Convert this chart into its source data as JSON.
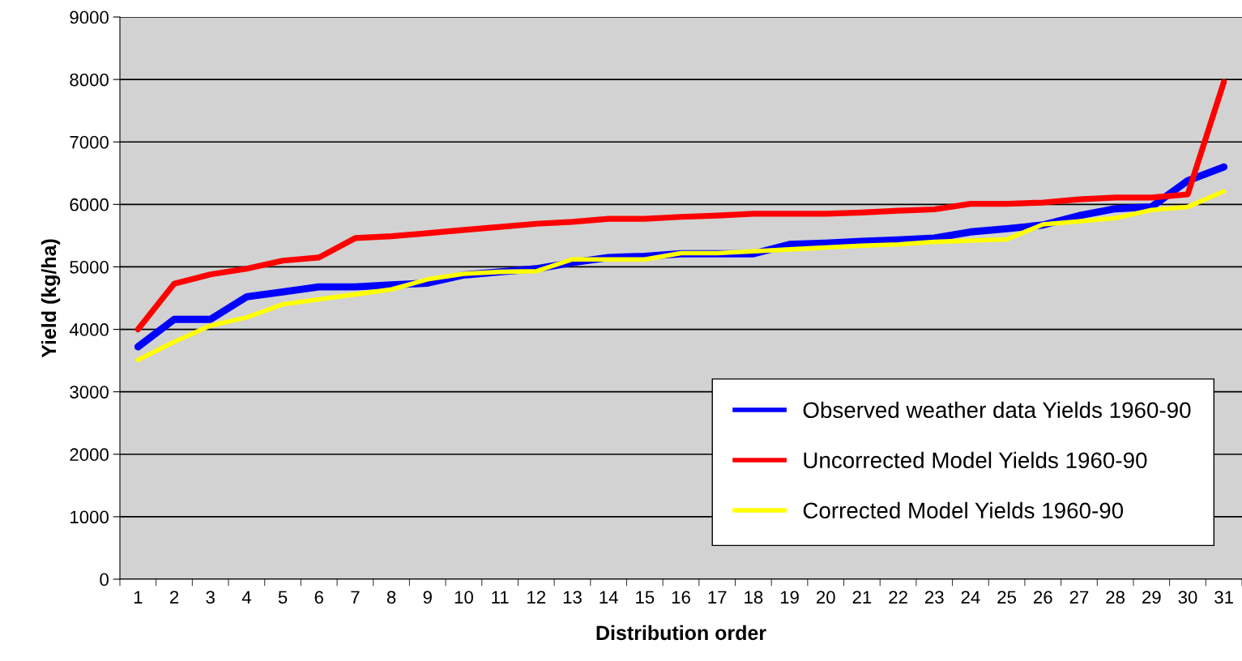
{
  "chart_data": {
    "type": "line",
    "xlabel": "Distribution order",
    "ylabel": "Yield (kg/ha)",
    "categories": [
      "1",
      "2",
      "3",
      "4",
      "5",
      "6",
      "7",
      "8",
      "9",
      "10",
      "11",
      "12",
      "13",
      "14",
      "15",
      "16",
      "17",
      "18",
      "19",
      "20",
      "21",
      "22",
      "23",
      "24",
      "25",
      "26",
      "27",
      "28",
      "29",
      "30",
      "31"
    ],
    "series": [
      {
        "name": "Observed weather data Yields 1960-90",
        "color": "#0000ff",
        "values": [
          3720,
          4160,
          4160,
          4520,
          4600,
          4680,
          4680,
          4710,
          4740,
          4870,
          4920,
          4970,
          5070,
          5150,
          5170,
          5210,
          5210,
          5210,
          5360,
          5380,
          5410,
          5430,
          5460,
          5560,
          5610,
          5670,
          5820,
          5930,
          5960,
          6380,
          6600
        ]
      },
      {
        "name": "Uncorrected Model Yields 1960-90",
        "color": "#ff0000",
        "values": [
          4000,
          4730,
          4880,
          4970,
          5100,
          5150,
          5460,
          5490,
          5540,
          5590,
          5640,
          5690,
          5720,
          5770,
          5770,
          5800,
          5820,
          5850,
          5850,
          5850,
          5870,
          5900,
          5920,
          6010,
          6010,
          6030,
          6080,
          6110,
          6110,
          6160,
          7960
        ]
      },
      {
        "name": "Corrected Model Yields 1960-90",
        "color": "#ffff00",
        "values": [
          3510,
          3800,
          4060,
          4190,
          4400,
          4480,
          4560,
          4640,
          4800,
          4890,
          4920,
          4930,
          5120,
          5120,
          5120,
          5220,
          5220,
          5250,
          5280,
          5310,
          5340,
          5360,
          5400,
          5420,
          5440,
          5680,
          5730,
          5780,
          5910,
          5960,
          6210
        ]
      }
    ],
    "ylim": [
      0,
      9000
    ],
    "yticks": [
      0,
      1000,
      2000,
      3000,
      4000,
      5000,
      6000,
      7000,
      8000,
      9000
    ],
    "grid": "y",
    "legend": "bottom right",
    "marker": "none",
    "line_style": "solid"
  }
}
